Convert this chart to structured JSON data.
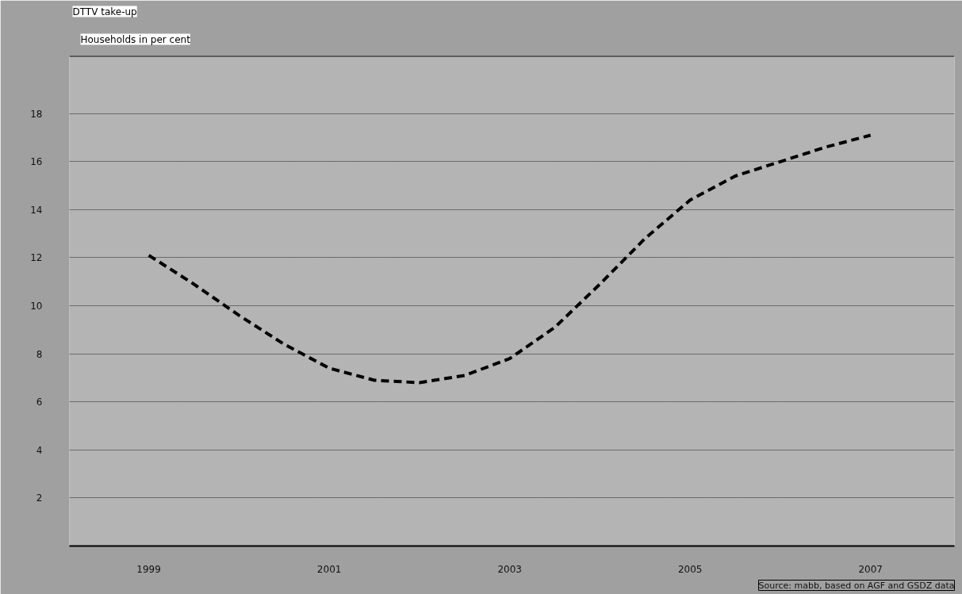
{
  "chart_data": {
    "type": "line",
    "title": "DTTV take-up",
    "subtitle": "Households in per cent",
    "x": [
      1999,
      1999.5,
      2000,
      2000.5,
      2001,
      2001.5,
      2002,
      2002.5,
      2003,
      2003.5,
      2004,
      2004.5,
      2005,
      2005.5,
      2006,
      2006.5,
      2007
    ],
    "series": [
      {
        "color": "#000000",
        "values": [
          12.1,
          10.9,
          9.6,
          8.4,
          7.4,
          6.9,
          6.8,
          7.1,
          7.8,
          9.1,
          10.9,
          12.8,
          14.4,
          15.4,
          16.0,
          16.6,
          17.1
        ]
      }
    ],
    "xlim": [
      1998.12,
      2007.93
    ],
    "ylim": [
      0,
      20.4
    ],
    "xticks": [
      1999,
      2001,
      2003,
      2005,
      2007
    ],
    "yticks": [
      2,
      4,
      6,
      8,
      10,
      12,
      14,
      16,
      18
    ],
    "grid": "y",
    "line_style": "dashed",
    "marker": "none",
    "annotations": [
      "Source: mabb, based on AGF and GSDZ data"
    ]
  }
}
